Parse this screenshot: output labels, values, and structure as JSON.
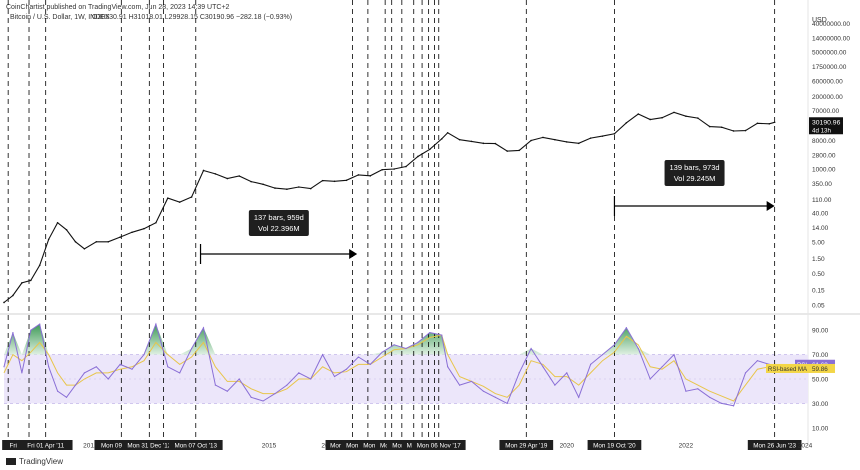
{
  "header": {
    "line1": "CoinChartist published on TradingView.com, Jun 28, 2023 14:39 UTC+2",
    "symbol": "Bitcoin / U.S. Dollar, 1W, INDEX",
    "ohlc": "O30530.91  H31018.01  L29928.15  C30190.96  −282.18 (−0.93%)"
  },
  "footer": {
    "brand": "TradingView"
  },
  "chart_data": [
    {
      "type": "line",
      "name": "price",
      "yscale": "log",
      "currency": "USD",
      "y_ticks": [
        "40000000.00",
        "14000000.00",
        "5000000.00",
        "1750000.00",
        "600000.00",
        "200000.00",
        "70000.00",
        "8000.00",
        "2800.00",
        "1000.00",
        "350.00",
        "110.00",
        "40.00",
        "14.00",
        "5.00",
        "1.50",
        "0.50",
        "0.15",
        "0.05"
      ],
      "x": [
        2010.55,
        2010.7,
        2010.85,
        2011.0,
        2011.15,
        2011.3,
        2011.45,
        2011.6,
        2011.75,
        2011.9,
        2012.1,
        2012.3,
        2012.5,
        2012.7,
        2012.9,
        2013.1,
        2013.3,
        2013.5,
        2013.7,
        2013.9,
        2014.1,
        2014.3,
        2014.5,
        2014.7,
        2014.9,
        2015.1,
        2015.3,
        2015.5,
        2015.7,
        2015.9,
        2016.1,
        2016.3,
        2016.5,
        2016.7,
        2016.9,
        2017.1,
        2017.3,
        2017.5,
        2017.7,
        2017.9,
        2018.0,
        2018.2,
        2018.4,
        2018.6,
        2018.8,
        2019.0,
        2019.2,
        2019.4,
        2019.6,
        2019.8,
        2020.0,
        2020.2,
        2020.4,
        2020.6,
        2020.8,
        2021.0,
        2021.2,
        2021.4,
        2021.6,
        2021.8,
        2022.0,
        2022.2,
        2022.4,
        2022.6,
        2022.8,
        2023.0,
        2023.2,
        2023.4,
        2023.49
      ],
      "y": [
        0.06,
        0.1,
        0.25,
        0.3,
        0.9,
        6,
        20,
        12,
        5,
        3,
        5,
        5,
        7,
        10,
        13,
        20,
        120,
        90,
        130,
        900,
        700,
        500,
        600,
        400,
        330,
        250,
        230,
        270,
        240,
        430,
        410,
        440,
        650,
        610,
        950,
        1000,
        1200,
        2500,
        4200,
        9000,
        14000,
        8500,
        7500,
        6500,
        6400,
        3700,
        3900,
        8000,
        10000,
        8500,
        7200,
        6500,
        9500,
        11000,
        13000,
        29000,
        55000,
        37000,
        42000,
        62000,
        47000,
        41000,
        22000,
        21000,
        16000,
        16500,
        28000,
        27000,
        30190.96
      ],
      "last_price": "30190.96",
      "countdown": "4d 13h",
      "annotations": [
        {
          "bars": "137 bars, 959d",
          "vol": "Vol 22.396M",
          "from": 2013.85,
          "to": 2016.48
        },
        {
          "bars": "139 bars, 973d",
          "vol": "Vol 29.245M",
          "from": 2020.8,
          "to": 2023.49
        }
      ]
    },
    {
      "type": "line",
      "name": "rsi",
      "y_ticks": [
        "90.00",
        "70.00",
        "50.00",
        "30.00",
        "10.00"
      ],
      "band": [
        30,
        70
      ],
      "rsi_label": "RSI",
      "rsi_value": "61.68",
      "ma_label": "RSI-based MA",
      "ma_value": "59.86",
      "x": [
        2010.55,
        2010.7,
        2010.85,
        2011.0,
        2011.15,
        2011.3,
        2011.45,
        2011.6,
        2011.75,
        2011.9,
        2012.1,
        2012.3,
        2012.5,
        2012.7,
        2012.9,
        2013.1,
        2013.3,
        2013.5,
        2013.7,
        2013.9,
        2014.1,
        2014.3,
        2014.5,
        2014.7,
        2014.9,
        2015.1,
        2015.3,
        2015.5,
        2015.7,
        2015.9,
        2016.1,
        2016.3,
        2016.5,
        2016.7,
        2016.9,
        2017.1,
        2017.3,
        2017.5,
        2017.7,
        2017.9,
        2018.0,
        2018.2,
        2018.4,
        2018.6,
        2018.8,
        2019.0,
        2019.2,
        2019.4,
        2019.6,
        2019.8,
        2020.0,
        2020.2,
        2020.4,
        2020.6,
        2020.8,
        2021.0,
        2021.2,
        2021.4,
        2021.6,
        2021.8,
        2022.0,
        2022.2,
        2022.4,
        2022.6,
        2022.8,
        2023.0,
        2023.2,
        2023.4,
        2023.49
      ],
      "rsi": [
        60,
        88,
        55,
        90,
        95,
        60,
        40,
        35,
        45,
        55,
        60,
        50,
        62,
        58,
        70,
        95,
        60,
        55,
        75,
        92,
        45,
        40,
        50,
        35,
        32,
        38,
        45,
        55,
        50,
        70,
        52,
        58,
        68,
        62,
        72,
        78,
        75,
        80,
        88,
        86,
        60,
        45,
        48,
        40,
        35,
        30,
        55,
        75,
        60,
        45,
        55,
        35,
        62,
        70,
        78,
        92,
        75,
        50,
        60,
        70,
        40,
        42,
        35,
        30,
        28,
        55,
        65,
        62,
        61.68
      ],
      "ma": [
        55,
        70,
        65,
        72,
        80,
        70,
        55,
        45,
        45,
        50,
        55,
        55,
        58,
        60,
        65,
        80,
        70,
        62,
        68,
        80,
        60,
        48,
        48,
        42,
        38,
        38,
        42,
        50,
        50,
        60,
        55,
        56,
        62,
        62,
        68,
        74,
        75,
        78,
        84,
        86,
        70,
        52,
        48,
        44,
        38,
        35,
        45,
        65,
        62,
        52,
        52,
        45,
        55,
        65,
        72,
        85,
        78,
        60,
        58,
        65,
        50,
        45,
        40,
        36,
        32,
        45,
        58,
        60,
        59.86
      ]
    }
  ],
  "x_axis": {
    "ticks": [
      {
        "label": "Fri 20 Dec '10",
        "x": 2010.97
      },
      {
        "label": "Fri 01 Apr '11",
        "x": 2011.25
      },
      {
        "label": "2012",
        "x": 2012.0
      },
      {
        "label": "Mon 09 Jul '12",
        "x": 2012.52
      },
      {
        "label": "Mon 31 Dec '12",
        "x": 2012.99
      },
      {
        "label": "Mon 07 Oct '13",
        "x": 2013.77
      },
      {
        "label": "2015",
        "x": 2015.0
      },
      {
        "label": "2016",
        "x": 2016.0
      },
      {
        "label": "Mon 23 May '16",
        "x": 2016.4
      },
      {
        "label": "Mon 29 Aug '16",
        "x": 2016.66
      },
      {
        "label": "Mon 12 Dec '16",
        "x": 2016.95
      },
      {
        "label": "Mon 27 Mar '17",
        "x": 2017.23
      },
      {
        "label": "Mon 05 Jun '17",
        "x": 2017.43
      },
      {
        "label": "Mon 04 Sep '17",
        "x": 2017.68
      },
      {
        "label": "Mon 06 Nov '17",
        "x": 2017.85
      },
      {
        "label": "Mon 29 Apr '19",
        "x": 2019.32
      },
      {
        "label": "2020",
        "x": 2020.0
      },
      {
        "label": "Mon 19 Oct '20",
        "x": 2020.8
      },
      {
        "label": "2022",
        "x": 2022.0
      },
      {
        "label": "Mon 26 Jun '23",
        "x": 2023.49
      },
      {
        "label": "2024",
        "x": 2024.0
      }
    ],
    "event_lines": [
      2010.62,
      2010.97,
      2011.25,
      2012.52,
      2012.99,
      2013.23,
      2013.77,
      2016.4,
      2016.66,
      2016.95,
      2017.06,
      2017.23,
      2017.43,
      2017.57,
      2017.68,
      2017.78,
      2017.85,
      2019.32,
      2020.8,
      2023.49
    ]
  },
  "colors": {
    "price": "#111111",
    "rsi": "#8a6fd6",
    "ma": "#e8c54a",
    "band": "#ece6fa",
    "rsi_fill_top": "#3d9a56",
    "grid_dash": "#000000",
    "price_label_bg": "#111111",
    "rsi_badge": "#8a6fd6",
    "ma_badge": "#f3d648"
  }
}
